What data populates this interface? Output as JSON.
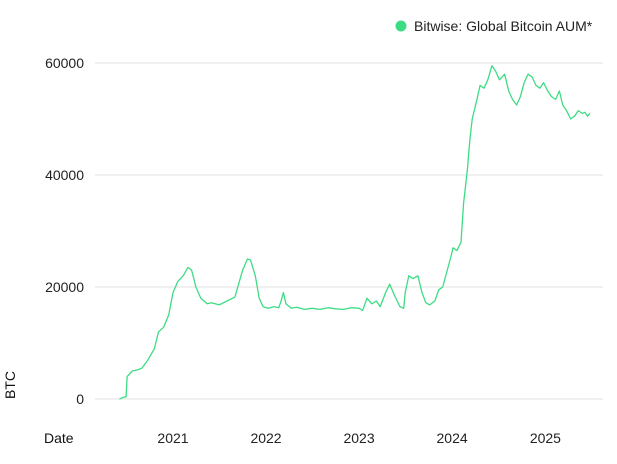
{
  "chart_data": {
    "type": "line",
    "title": "",
    "xlabel": "Date",
    "ylabel": "BTC",
    "ylim": [
      0,
      60000
    ],
    "xlim": [
      "2020-03-01",
      "2025-08-15"
    ],
    "y_ticks": [
      0,
      20000,
      40000,
      60000
    ],
    "y_tick_labels": [
      "0",
      "20000",
      "40000",
      "60000"
    ],
    "x_ticks": [
      "2021-01-01",
      "2022-01-01",
      "2023-01-01",
      "2024-01-01",
      "2025-01-01"
    ],
    "x_tick_labels": [
      "2021",
      "2022",
      "2023",
      "2024",
      "2025"
    ],
    "grid": true,
    "legend_position": "top-right",
    "series": [
      {
        "name": "Bitwise: Global Bitcoin AUM*",
        "color": "#3ddc84",
        "points": [
          [
            "2020-06-05",
            0
          ],
          [
            "2020-06-20",
            300
          ],
          [
            "2020-07-01",
            400
          ],
          [
            "2020-07-05",
            4000
          ],
          [
            "2020-07-25",
            5000
          ],
          [
            "2020-08-15",
            5200
          ],
          [
            "2020-09-01",
            5500
          ],
          [
            "2020-09-25",
            7000
          ],
          [
            "2020-10-20",
            9000
          ],
          [
            "2020-11-05",
            12000
          ],
          [
            "2020-11-25",
            12800
          ],
          [
            "2020-12-15",
            15000
          ],
          [
            "2021-01-01",
            19000
          ],
          [
            "2021-01-20",
            21000
          ],
          [
            "2021-02-10",
            22000
          ],
          [
            "2021-03-01",
            23500
          ],
          [
            "2021-03-15",
            23000
          ],
          [
            "2021-04-01",
            20000
          ],
          [
            "2021-04-20",
            18000
          ],
          [
            "2021-05-15",
            17000
          ],
          [
            "2021-06-01",
            17200
          ],
          [
            "2021-07-01",
            16800
          ],
          [
            "2021-08-01",
            17500
          ],
          [
            "2021-09-01",
            18200
          ],
          [
            "2021-10-01",
            23000
          ],
          [
            "2021-10-20",
            25000
          ],
          [
            "2021-11-01",
            24800
          ],
          [
            "2021-11-20",
            22000
          ],
          [
            "2021-12-05",
            18000
          ],
          [
            "2021-12-20",
            16500
          ],
          [
            "2022-01-10",
            16200
          ],
          [
            "2022-02-01",
            16500
          ],
          [
            "2022-02-20",
            16300
          ],
          [
            "2022-03-01",
            17500
          ],
          [
            "2022-03-10",
            19000
          ],
          [
            "2022-03-20",
            17000
          ],
          [
            "2022-04-10",
            16200
          ],
          [
            "2022-05-01",
            16400
          ],
          [
            "2022-06-01",
            16000
          ],
          [
            "2022-07-01",
            16200
          ],
          [
            "2022-08-01",
            16000
          ],
          [
            "2022-09-01",
            16300
          ],
          [
            "2022-10-01",
            16100
          ],
          [
            "2022-11-01",
            16000
          ],
          [
            "2022-12-01",
            16300
          ],
          [
            "2023-01-01",
            16200
          ],
          [
            "2023-01-15",
            15800
          ],
          [
            "2023-02-01",
            18000
          ],
          [
            "2023-02-20",
            17000
          ],
          [
            "2023-03-10",
            17500
          ],
          [
            "2023-03-25",
            16500
          ],
          [
            "2023-04-15",
            19000
          ],
          [
            "2023-05-01",
            20500
          ],
          [
            "2023-05-20",
            18500
          ],
          [
            "2023-06-10",
            16500
          ],
          [
            "2023-06-25",
            16200
          ],
          [
            "2023-07-01",
            19000
          ],
          [
            "2023-07-15",
            22000
          ],
          [
            "2023-08-01",
            21500
          ],
          [
            "2023-08-20",
            22000
          ],
          [
            "2023-09-05",
            19000
          ],
          [
            "2023-09-20",
            17200
          ],
          [
            "2023-10-05",
            16800
          ],
          [
            "2023-10-25",
            17500
          ],
          [
            "2023-11-10",
            19500
          ],
          [
            "2023-11-25",
            20000
          ],
          [
            "2023-12-10",
            22500
          ],
          [
            "2023-12-25",
            25000
          ],
          [
            "2024-01-05",
            27000
          ],
          [
            "2024-01-20",
            26500
          ],
          [
            "2024-02-05",
            28000
          ],
          [
            "2024-02-15",
            35000
          ],
          [
            "2024-03-01",
            41000
          ],
          [
            "2024-03-10",
            46000
          ],
          [
            "2024-03-20",
            50000
          ],
          [
            "2024-04-05",
            53000
          ],
          [
            "2024-04-20",
            56000
          ],
          [
            "2024-05-05",
            55500
          ],
          [
            "2024-05-20",
            57000
          ],
          [
            "2024-06-05",
            59500
          ],
          [
            "2024-06-20",
            58500
          ],
          [
            "2024-07-05",
            57000
          ],
          [
            "2024-07-25",
            58000
          ],
          [
            "2024-08-10",
            55000
          ],
          [
            "2024-08-25",
            53500
          ],
          [
            "2024-09-10",
            52500
          ],
          [
            "2024-09-25",
            54000
          ],
          [
            "2024-10-10",
            56500
          ],
          [
            "2024-10-25",
            58000
          ],
          [
            "2024-11-10",
            57500
          ],
          [
            "2024-11-25",
            56000
          ],
          [
            "2024-12-10",
            55500
          ],
          [
            "2024-12-25",
            56500
          ],
          [
            "2025-01-10",
            55000
          ],
          [
            "2025-01-25",
            54000
          ],
          [
            "2025-02-10",
            53500
          ],
          [
            "2025-02-25",
            55000
          ],
          [
            "2025-03-10",
            52500
          ],
          [
            "2025-03-25",
            51500
          ],
          [
            "2025-04-10",
            50000
          ],
          [
            "2025-04-25",
            50500
          ],
          [
            "2025-05-10",
            51500
          ],
          [
            "2025-05-25",
            51000
          ],
          [
            "2025-06-05",
            51200
          ],
          [
            "2025-06-15",
            50500
          ],
          [
            "2025-06-25",
            51000
          ]
        ]
      }
    ]
  }
}
